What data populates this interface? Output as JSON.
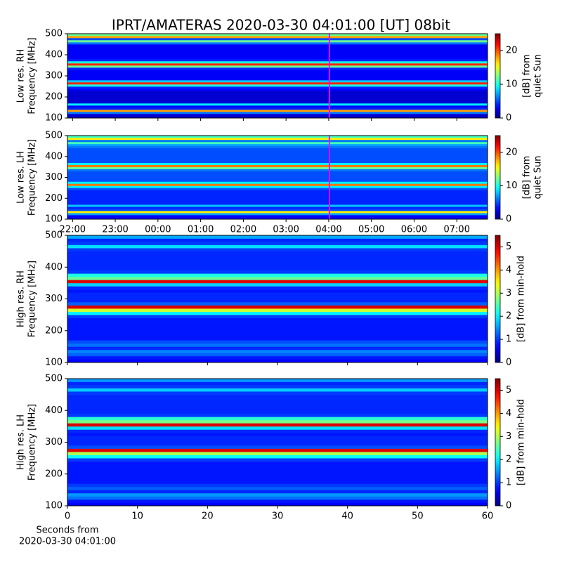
{
  "chart_data": [
    {
      "type": "heatmap",
      "title": "IPRT/AMATERAS 2020-03-30 04:01:00 [UT]   08bit",
      "ylabel": [
        "Low res. RH",
        "Frequency [MHz]"
      ],
      "cbar_label": [
        "[dB] from",
        "quiet Sun"
      ],
      "cmap": "jet",
      "xlim": [
        21.88,
        31.72
      ],
      "sharex": 1,
      "ylim": [
        100,
        500
      ],
      "yticks": [
        100,
        200,
        300,
        400,
        500
      ],
      "clim": [
        0,
        25
      ],
      "cticks": [
        0,
        10,
        20
      ],
      "vline": {
        "x": 28.0167,
        "color": "#ff00ff"
      },
      "y_bins": [
        100,
        110,
        120,
        130,
        140,
        150,
        160,
        170,
        180,
        190,
        200,
        210,
        220,
        230,
        240,
        250,
        260,
        270,
        280,
        290,
        300,
        310,
        320,
        330,
        340,
        350,
        360,
        370,
        380,
        390,
        400,
        410,
        420,
        430,
        440,
        450,
        460,
        470,
        480,
        490,
        500
      ],
      "values": [
        2,
        2,
        6,
        18,
        4,
        3,
        9,
        2,
        2,
        2,
        2,
        2,
        2,
        3,
        4,
        10,
        21,
        8,
        3,
        3,
        3,
        3,
        3,
        4,
        12,
        21,
        10,
        4,
        3,
        3,
        3,
        3,
        3,
        3,
        3,
        6,
        12,
        5,
        18,
        12
      ]
    },
    {
      "type": "heatmap",
      "ylabel": [
        "Low res. LH",
        "Frequency [MHz]"
      ],
      "cbar_label": [
        "[dB] from",
        "quiet Sun"
      ],
      "cmap": "jet",
      "xlim": [
        21.88,
        31.72
      ],
      "ylim": [
        100,
        500
      ],
      "yticks": [
        100,
        200,
        300,
        400,
        500
      ],
      "xticks": [
        {
          "value": 22,
          "label": "22:00"
        },
        {
          "value": 23,
          "label": "23:00"
        },
        {
          "value": 24,
          "label": "00:00"
        },
        {
          "value": 25,
          "label": "01:00"
        },
        {
          "value": 26,
          "label": "02:00"
        },
        {
          "value": 27,
          "label": "03:00"
        },
        {
          "value": 28,
          "label": "04:00"
        },
        {
          "value": 29,
          "label": "05:00"
        },
        {
          "value": 30,
          "label": "06:00"
        },
        {
          "value": 31,
          "label": "07:00"
        }
      ],
      "clim": [
        0,
        25
      ],
      "cticks": [
        0,
        10,
        20
      ],
      "vline": {
        "x": 28.0167,
        "color": "#ff00ff"
      },
      "y_bins": [
        100,
        110,
        120,
        130,
        140,
        150,
        160,
        170,
        180,
        190,
        200,
        210,
        220,
        230,
        240,
        250,
        260,
        270,
        280,
        290,
        300,
        310,
        320,
        330,
        340,
        350,
        360,
        370,
        380,
        390,
        400,
        410,
        420,
        430,
        440,
        450,
        460,
        470,
        480,
        490,
        500
      ],
      "values": [
        3,
        3,
        7,
        16,
        5,
        4,
        8,
        4,
        4,
        4,
        4,
        4,
        4,
        4,
        5,
        9,
        19,
        9,
        5,
        5,
        5,
        5,
        5,
        6,
        12,
        19,
        9,
        5,
        5,
        5,
        5,
        5,
        5,
        5,
        6,
        7,
        11,
        6,
        16,
        11
      ]
    },
    {
      "type": "heatmap",
      "ylabel": [
        "High res. RH",
        "Frequency [MHz]"
      ],
      "cbar_label": [
        "[dB] from min-hold"
      ],
      "cmap": "jet",
      "xlim": [
        0,
        60
      ],
      "sharex": 3,
      "ylim": [
        100,
        500
      ],
      "yticks": [
        100,
        200,
        300,
        400,
        500
      ],
      "clim": [
        0,
        5.5
      ],
      "cticks": [
        0,
        1,
        2,
        3,
        4,
        5
      ],
      "y_bins": [
        100,
        110,
        120,
        130,
        140,
        150,
        160,
        170,
        180,
        190,
        200,
        210,
        220,
        230,
        240,
        250,
        260,
        270,
        280,
        290,
        300,
        310,
        320,
        330,
        340,
        350,
        360,
        370,
        380,
        390,
        400,
        410,
        420,
        430,
        440,
        450,
        460,
        470,
        480,
        490,
        500
      ],
      "values": [
        0.7,
        0.8,
        1.2,
        1.4,
        0.9,
        1.3,
        1.1,
        0.8,
        0.8,
        0.8,
        0.8,
        0.8,
        0.8,
        0.8,
        1.0,
        2.0,
        3.2,
        5.0,
        1.2,
        0.9,
        0.9,
        0.9,
        0.8,
        0.9,
        1.8,
        5.0,
        2.6,
        2.2,
        1.0,
        0.9,
        0.9,
        0.9,
        0.9,
        0.9,
        0.9,
        1.0,
        1.9,
        1.0,
        0.9,
        1.6
      ]
    },
    {
      "type": "heatmap",
      "ylabel": [
        "High res. LH",
        "Frequency [MHz]"
      ],
      "cbar_label": [
        "[dB] from min-hold"
      ],
      "xlabel": [
        "Seconds from",
        "2020-03-30 04:01:00"
      ],
      "cmap": "jet",
      "xlim": [
        0,
        60
      ],
      "xticks": [
        0,
        10,
        20,
        30,
        40,
        50,
        60
      ],
      "ylim": [
        100,
        500
      ],
      "yticks": [
        100,
        200,
        300,
        400,
        500
      ],
      "clim": [
        0,
        5.5
      ],
      "cticks": [
        0,
        1,
        2,
        3,
        4,
        5
      ],
      "y_bins": [
        100,
        110,
        120,
        130,
        140,
        150,
        160,
        170,
        180,
        190,
        200,
        210,
        220,
        230,
        240,
        250,
        260,
        270,
        280,
        290,
        300,
        310,
        320,
        330,
        340,
        350,
        360,
        370,
        380,
        390,
        400,
        410,
        420,
        430,
        440,
        450,
        460,
        470,
        480,
        490,
        500
      ],
      "values": [
        0.7,
        0.8,
        1.3,
        1.5,
        0.9,
        1.2,
        1.0,
        0.8,
        0.8,
        0.8,
        0.8,
        0.8,
        0.8,
        0.8,
        1.0,
        2.1,
        3.0,
        5.0,
        1.1,
        0.9,
        0.9,
        0.9,
        0.8,
        0.9,
        1.9,
        5.0,
        2.7,
        2.3,
        1.0,
        0.9,
        0.9,
        0.9,
        0.9,
        0.9,
        0.9,
        1.0,
        1.8,
        1.0,
        0.9,
        1.5
      ]
    }
  ]
}
